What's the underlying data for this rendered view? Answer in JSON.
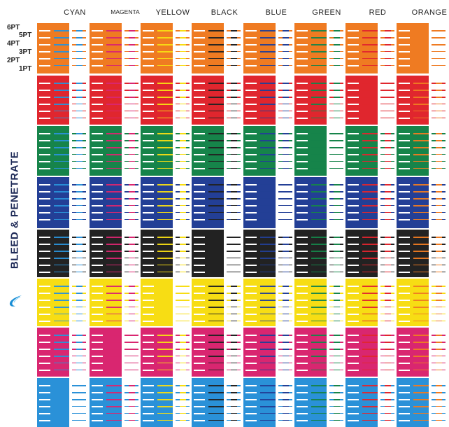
{
  "columns": [
    {
      "name": "CYAN",
      "hex": "#2a91d8"
    },
    {
      "name": "MAGENTA",
      "hex": "#d92670"
    },
    {
      "name": "YELLOW",
      "hex": "#f7dd14"
    },
    {
      "name": "BLACK",
      "hex": "#222222"
    },
    {
      "name": "BLUE",
      "hex": "#233f96"
    },
    {
      "name": "GREEN",
      "hex": "#16844a"
    },
    {
      "name": "RED",
      "hex": "#e0262e"
    },
    {
      "name": "ORANGE",
      "hex": "#ef7b22"
    }
  ],
  "rows": [
    {
      "name": "ORANGE",
      "hex": "#ef7b22"
    },
    {
      "name": "RED",
      "hex": "#e0262e"
    },
    {
      "name": "GREEN",
      "hex": "#16844a"
    },
    {
      "name": "BLUE",
      "hex": "#233f96"
    },
    {
      "name": "BLACK",
      "hex": "#222222"
    },
    {
      "name": "YELLOW",
      "hex": "#f7dd14"
    },
    {
      "name": "MAGENTA",
      "hex": "#d92670"
    },
    {
      "name": "CYAN",
      "hex": "#2a91d8"
    }
  ],
  "point_sizes": [
    "6PT",
    "5PT",
    "4PT",
    "3PT",
    "2PT",
    "1PT"
  ],
  "side_label": "BLEED & PENETRATE",
  "icon": "water-drop-icon"
}
